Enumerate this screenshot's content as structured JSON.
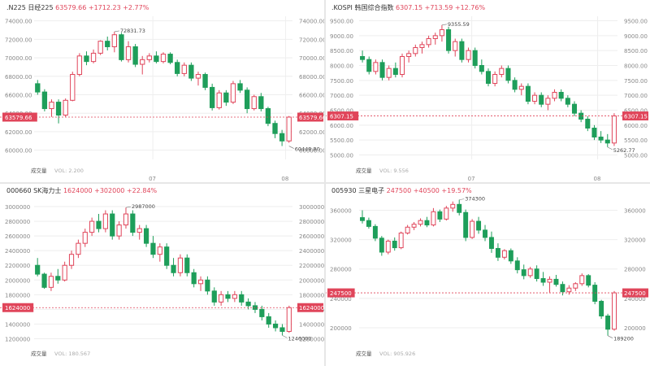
{
  "colors": {
    "up": "#e0455a",
    "down": "#1e9e5a",
    "price_line": "#e0455a",
    "grid": "#eeeeee",
    "axis_text": "#888888",
    "title_text": "#333333"
  },
  "panels": [
    {
      "id": "n225",
      "symbol": ".N225",
      "name": "日经225",
      "price": "63579.66",
      "change": "+1712.23",
      "pct": "+2.77%",
      "last_label": "63579.66",
      "vol_label": "成交量",
      "vol_value": "VOL: 2.200",
      "x_labels": [
        {
          "label": "07",
          "idx": 16.5
        },
        {
          "label": "08",
          "idx": 35.5
        }
      ]
    },
    {
      "id": "kospi",
      "symbol": ".KOSPI",
      "name": "韩国综合指数",
      "price": "6307.15",
      "change": "+713.59",
      "pct": "+12.76%",
      "last_label": "6307.15",
      "vol_label": "成交量",
      "vol_value": "VOL: 9.556",
      "x_labels": [
        {
          "label": "07",
          "idx": 16.5
        },
        {
          "label": "08",
          "idx": 35.5
        }
      ]
    },
    {
      "id": "skhynix",
      "symbol": "000660",
      "name": "SK海力士",
      "price": "1624000",
      "change": "+302000",
      "pct": "+22.84%",
      "last_label": "1624000",
      "vol_label": "成交量",
      "vol_value": "VOL: 180.567",
      "x_labels": []
    },
    {
      "id": "samsung",
      "symbol": "005930",
      "name": "三星电子",
      "price": "247500",
      "change": "+40500",
      "pct": "+19.57%",
      "last_label": "247500",
      "vol_label": "成交量",
      "vol_value": "VOL: 905.926",
      "x_labels": []
    }
  ],
  "chart_data": [
    {
      "type": "candlestick",
      "yticks": [
        60000,
        62000,
        64000,
        66000,
        68000,
        70000,
        72000,
        74000
      ],
      "ytick_labels": [
        "60000.00",
        "62000.00",
        "64000.00",
        "66000.00",
        "68000.00",
        "70000.00",
        "72000.00",
        "74000.00"
      ],
      "ylim": [
        59000,
        74500
      ],
      "last_price": 63579.66,
      "annotations": [
        {
          "idx": 11,
          "value": 72831.73,
          "label": "72831.73",
          "at": "high"
        },
        {
          "idx": 36,
          "value": 60448.8,
          "label": "60448.80",
          "at": "low"
        }
      ],
      "candles": [
        [
          67200,
          67600,
          66000,
          66300
        ],
        [
          66300,
          66600,
          64200,
          64500
        ],
        [
          64500,
          65500,
          63600,
          65200
        ],
        [
          65200,
          65500,
          62900,
          63800
        ],
        [
          63800,
          65600,
          63600,
          65400
        ],
        [
          65400,
          68500,
          65300,
          68200
        ],
        [
          68200,
          70500,
          68000,
          70200
        ],
        [
          70200,
          70700,
          69200,
          69600
        ],
        [
          69600,
          70900,
          69400,
          70500
        ],
        [
          70500,
          71900,
          70300,
          71800
        ],
        [
          71800,
          72300,
          70800,
          71200
        ],
        [
          71200,
          72831.73,
          70600,
          72500
        ],
        [
          72500,
          72700,
          69600,
          69800
        ],
        [
          69800,
          71800,
          69500,
          71200
        ],
        [
          71200,
          71500,
          69000,
          69300
        ],
        [
          69300,
          70200,
          68200,
          69800
        ],
        [
          69800,
          70500,
          69500,
          70200
        ],
        [
          70200,
          70700,
          69400,
          69600
        ],
        [
          69600,
          70600,
          69400,
          70400
        ],
        [
          70400,
          70600,
          69300,
          69500
        ],
        [
          69500,
          69800,
          68000,
          68300
        ],
        [
          68300,
          69500,
          68000,
          69200
        ],
        [
          69200,
          69500,
          67500,
          67800
        ],
        [
          67800,
          68500,
          67000,
          68200
        ],
        [
          68200,
          68400,
          66500,
          66800
        ],
        [
          66800,
          67200,
          64300,
          64600
        ],
        [
          64600,
          66500,
          64400,
          66200
        ],
        [
          66200,
          66500,
          64800,
          65200
        ],
        [
          65200,
          67500,
          65000,
          67200
        ],
        [
          67200,
          67600,
          66200,
          66500
        ],
        [
          66500,
          66800,
          64000,
          64500
        ],
        [
          64500,
          66000,
          64300,
          65800
        ],
        [
          65800,
          66200,
          64200,
          64500
        ],
        [
          64500,
          64700,
          62600,
          62900
        ],
        [
          62900,
          63200,
          61300,
          61800
        ],
        [
          61800,
          62200,
          60448.8,
          61000
        ],
        [
          61000,
          63700,
          60800,
          63579.66
        ]
      ]
    },
    {
      "type": "candlestick",
      "yticks": [
        5000,
        5500,
        6000,
        6500,
        7000,
        7500,
        8000,
        8500,
        9000,
        9500
      ],
      "ytick_labels": [
        "5000.00",
        "5500.00",
        "6000.00",
        "6500.00",
        "7000.00",
        "7500.00",
        "8000.00",
        "8500.00",
        "9000.00",
        "9500.00"
      ],
      "ylim": [
        4850,
        9650
      ],
      "last_price": 6307.15,
      "annotations": [
        {
          "idx": 12,
          "value": 9355.59,
          "label": "9355.59",
          "at": "high"
        },
        {
          "idx": 37,
          "value": 5262.77,
          "label": "5262.77",
          "at": "low"
        }
      ],
      "candles": [
        [
          8300,
          8500,
          8100,
          8200
        ],
        [
          8200,
          8300,
          7700,
          7800
        ],
        [
          7800,
          8200,
          7700,
          8100
        ],
        [
          8100,
          8200,
          7500,
          7600
        ],
        [
          7600,
          8000,
          7500,
          7900
        ],
        [
          7900,
          8100,
          7600,
          7700
        ],
        [
          7700,
          8400,
          7600,
          8300
        ],
        [
          8300,
          8500,
          8100,
          8400
        ],
        [
          8400,
          8700,
          8300,
          8600
        ],
        [
          8600,
          8800,
          8400,
          8700
        ],
        [
          8700,
          9000,
          8600,
          8900
        ],
        [
          8900,
          9100,
          8700,
          9000
        ],
        [
          9000,
          9355.59,
          8800,
          9200
        ],
        [
          9200,
          9300,
          8400,
          8500
        ],
        [
          8500,
          8900,
          8300,
          8800
        ],
        [
          8800,
          8900,
          8100,
          8200
        ],
        [
          8200,
          8600,
          8100,
          8500
        ],
        [
          8500,
          8600,
          7900,
          8000
        ],
        [
          8000,
          8200,
          7700,
          7800
        ],
        [
          7800,
          7900,
          7300,
          7400
        ],
        [
          7400,
          7800,
          7300,
          7700
        ],
        [
          7700,
          8000,
          7600,
          7900
        ],
        [
          7900,
          8000,
          7400,
          7500
        ],
        [
          7500,
          7600,
          7100,
          7200
        ],
        [
          7200,
          7400,
          7000,
          7300
        ],
        [
          7300,
          7400,
          6700,
          6800
        ],
        [
          6800,
          7100,
          6700,
          7000
        ],
        [
          7000,
          7100,
          6600,
          6700
        ],
        [
          6700,
          7000,
          6500,
          6900
        ],
        [
          6900,
          7200,
          6800,
          7100
        ],
        [
          7100,
          7200,
          6800,
          6900
        ],
        [
          6900,
          7000,
          6600,
          6700
        ],
        [
          6700,
          6800,
          6300,
          6400
        ],
        [
          6400,
          6500,
          6100,
          6200
        ],
        [
          6200,
          6300,
          5800,
          5900
        ],
        [
          5900,
          6000,
          5500,
          5600
        ],
        [
          5600,
          5800,
          5400,
          5500
        ],
        [
          5500,
          5700,
          5262.77,
          5400
        ],
        [
          5400,
          6400,
          5300,
          6307.15
        ]
      ]
    },
    {
      "type": "candlestick",
      "yticks": [
        1200000,
        1400000,
        1600000,
        1800000,
        2000000,
        2200000,
        2400000,
        2600000,
        2800000,
        3000000
      ],
      "ytick_labels": [
        "1200000",
        "1400000",
        "1600000",
        "1800000",
        "2000000",
        "2200000",
        "2400000",
        "2600000",
        "2800000",
        "3000000"
      ],
      "ylim": [
        1150000,
        3100000
      ],
      "last_price": 1624000,
      "annotations": [
        {
          "idx": 13,
          "value": 2987000,
          "label": "2987000",
          "at": "high"
        },
        {
          "idx": 36,
          "value": 1246000,
          "label": "1246000",
          "at": "low"
        }
      ],
      "candles": [
        [
          2200000,
          2300000,
          2050000,
          2080000
        ],
        [
          2080000,
          2100000,
          1880000,
          1900000
        ],
        [
          1900000,
          2100000,
          1850000,
          2050000
        ],
        [
          2050000,
          2150000,
          1950000,
          2000000
        ],
        [
          2000000,
          2250000,
          1980000,
          2200000
        ],
        [
          2200000,
          2400000,
          2150000,
          2350000
        ],
        [
          2350000,
          2550000,
          2300000,
          2500000
        ],
        [
          2500000,
          2700000,
          2450000,
          2650000
        ],
        [
          2650000,
          2850000,
          2600000,
          2800000
        ],
        [
          2800000,
          2900000,
          2650000,
          2700000
        ],
        [
          2700000,
          2950000,
          2650000,
          2900000
        ],
        [
          2900000,
          2950000,
          2550000,
          2600000
        ],
        [
          2600000,
          2800000,
          2550000,
          2750000
        ],
        [
          2750000,
          2987000,
          2700000,
          2900000
        ],
        [
          2900000,
          2950000,
          2600000,
          2650000
        ],
        [
          2650000,
          2750000,
          2550000,
          2700000
        ],
        [
          2700000,
          2750000,
          2450000,
          2500000
        ],
        [
          2500000,
          2600000,
          2300000,
          2350000
        ],
        [
          2350000,
          2500000,
          2250000,
          2450000
        ],
        [
          2450000,
          2500000,
          2150000,
          2200000
        ],
        [
          2200000,
          2300000,
          2050000,
          2100000
        ],
        [
          2100000,
          2350000,
          2050000,
          2300000
        ],
        [
          2300000,
          2350000,
          2050000,
          2100000
        ],
        [
          2100000,
          2150000,
          1900000,
          1950000
        ],
        [
          1950000,
          2050000,
          1850000,
          2000000
        ],
        [
          2000000,
          2050000,
          1800000,
          1850000
        ],
        [
          1850000,
          1900000,
          1650000,
          1700000
        ],
        [
          1700000,
          1850000,
          1650000,
          1800000
        ],
        [
          1800000,
          1850000,
          1700000,
          1750000
        ],
        [
          1750000,
          1850000,
          1700000,
          1800000
        ],
        [
          1800000,
          1850000,
          1650000,
          1700000
        ],
        [
          1700000,
          1750000,
          1600000,
          1650000
        ],
        [
          1650000,
          1700000,
          1550000,
          1600000
        ],
        [
          1600000,
          1650000,
          1450000,
          1500000
        ],
        [
          1500000,
          1550000,
          1350000,
          1400000
        ],
        [
          1400000,
          1450000,
          1300000,
          1350000
        ],
        [
          1350000,
          1400000,
          1246000,
          1300000
        ],
        [
          1300000,
          1650000,
          1280000,
          1624000
        ]
      ]
    },
    {
      "type": "candlestick",
      "yticks": [
        200000,
        240000,
        280000,
        320000,
        360000
      ],
      "ytick_labels": [
        "200000",
        "240000",
        "280000",
        "320000",
        "360000"
      ],
      "ylim": [
        180000,
        375000
      ],
      "last_price": 247500,
      "annotations": [
        {
          "idx": 15,
          "value": 374300,
          "label": "374300",
          "at": "high"
        },
        {
          "idx": 38,
          "value": 189200,
          "label": "189200",
          "at": "low"
        }
      ],
      "candles": [
        [
          350000,
          360000,
          342000,
          346000
        ],
        [
          346000,
          350000,
          335000,
          338000
        ],
        [
          338000,
          341000,
          318000,
          322000
        ],
        [
          322000,
          325000,
          298000,
          303000
        ],
        [
          303000,
          320000,
          300000,
          318000
        ],
        [
          318000,
          323000,
          305000,
          309000
        ],
        [
          309000,
          331000,
          307000,
          329000
        ],
        [
          329000,
          340000,
          327000,
          337000
        ],
        [
          337000,
          344000,
          333000,
          341000
        ],
        [
          341000,
          349000,
          338000,
          346000
        ],
        [
          346000,
          351000,
          337000,
          340000
        ],
        [
          340000,
          363000,
          338000,
          358000
        ],
        [
          358000,
          361000,
          344000,
          348000
        ],
        [
          348000,
          366000,
          346000,
          363000
        ],
        [
          363000,
          372000,
          358000,
          368000
        ],
        [
          368000,
          374300,
          353000,
          357000
        ],
        [
          357000,
          361000,
          318000,
          323000
        ],
        [
          323000,
          348000,
          321000,
          345000
        ],
        [
          345000,
          351000,
          328000,
          333000
        ],
        [
          333000,
          340000,
          318000,
          323000
        ],
        [
          323000,
          331000,
          302000,
          308000
        ],
        [
          308000,
          315000,
          291000,
          296000
        ],
        [
          296000,
          307000,
          293000,
          305000
        ],
        [
          305000,
          308000,
          287000,
          291000
        ],
        [
          291000,
          296000,
          274000,
          279000
        ],
        [
          279000,
          286000,
          266000,
          271000
        ],
        [
          271000,
          283000,
          268000,
          280000
        ],
        [
          280000,
          285000,
          263000,
          267000
        ],
        [
          267000,
          276000,
          257000,
          262000
        ],
        [
          262000,
          270000,
          248000,
          266000
        ],
        [
          266000,
          272000,
          256000,
          259000
        ],
        [
          259000,
          263000,
          244000,
          249000
        ],
        [
          249000,
          258000,
          245000,
          254000
        ],
        [
          254000,
          262000,
          250000,
          260000
        ],
        [
          260000,
          274000,
          257000,
          271000
        ],
        [
          271000,
          273000,
          255000,
          258000
        ],
        [
          258000,
          262000,
          232000,
          236000
        ],
        [
          236000,
          238000,
          212000,
          216000
        ],
        [
          216000,
          219000,
          189200,
          198000
        ],
        [
          198000,
          250000,
          196000,
          247500
        ]
      ]
    }
  ]
}
